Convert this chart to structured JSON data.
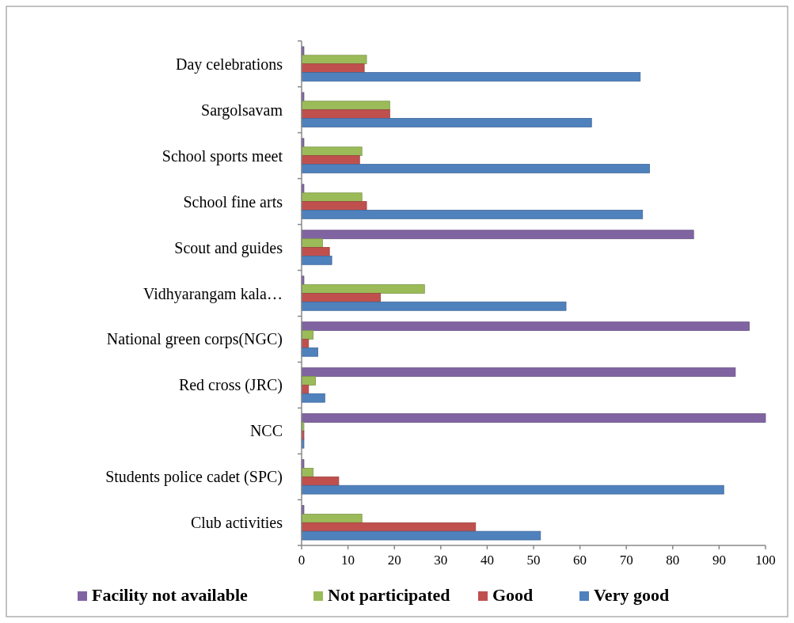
{
  "chart_data": {
    "type": "bar",
    "orientation": "horizontal",
    "categories": [
      "Day celebrations",
      "Sargolsavam",
      "School sports meet",
      "School fine arts",
      "Scout and guides",
      "Vidhyarangam kala…",
      "National green corps(NGC)",
      "Red cross (JRC)",
      "NCC",
      "Students police cadet (SPC)",
      "Club activities"
    ],
    "series": [
      {
        "name": "Facility not available",
        "color": "#8064a2",
        "values": [
          0.5,
          0.5,
          0.5,
          0.5,
          84.5,
          0.5,
          96.5,
          93.5,
          100,
          0.5,
          0.5
        ]
      },
      {
        "name": "Not participated",
        "color": "#9bbb59",
        "values": [
          14,
          19,
          13,
          13,
          4.5,
          26.5,
          2.5,
          3,
          0.5,
          2.5,
          13
        ]
      },
      {
        "name": "Good",
        "color": "#c0504d",
        "values": [
          13.5,
          19,
          12.5,
          14,
          6,
          17,
          1.5,
          1.5,
          0.5,
          8,
          37.5
        ]
      },
      {
        "name": "Very good",
        "color": "#4f81bd",
        "values": [
          73,
          62.5,
          75,
          73.5,
          6.5,
          57,
          3.5,
          5,
          0.5,
          91,
          51.5
        ]
      }
    ],
    "xlim": [
      0,
      100
    ],
    "xticks": [
      0,
      10,
      20,
      30,
      40,
      50,
      60,
      70,
      80,
      90,
      100
    ],
    "legend": "bottom",
    "grid": false
  }
}
